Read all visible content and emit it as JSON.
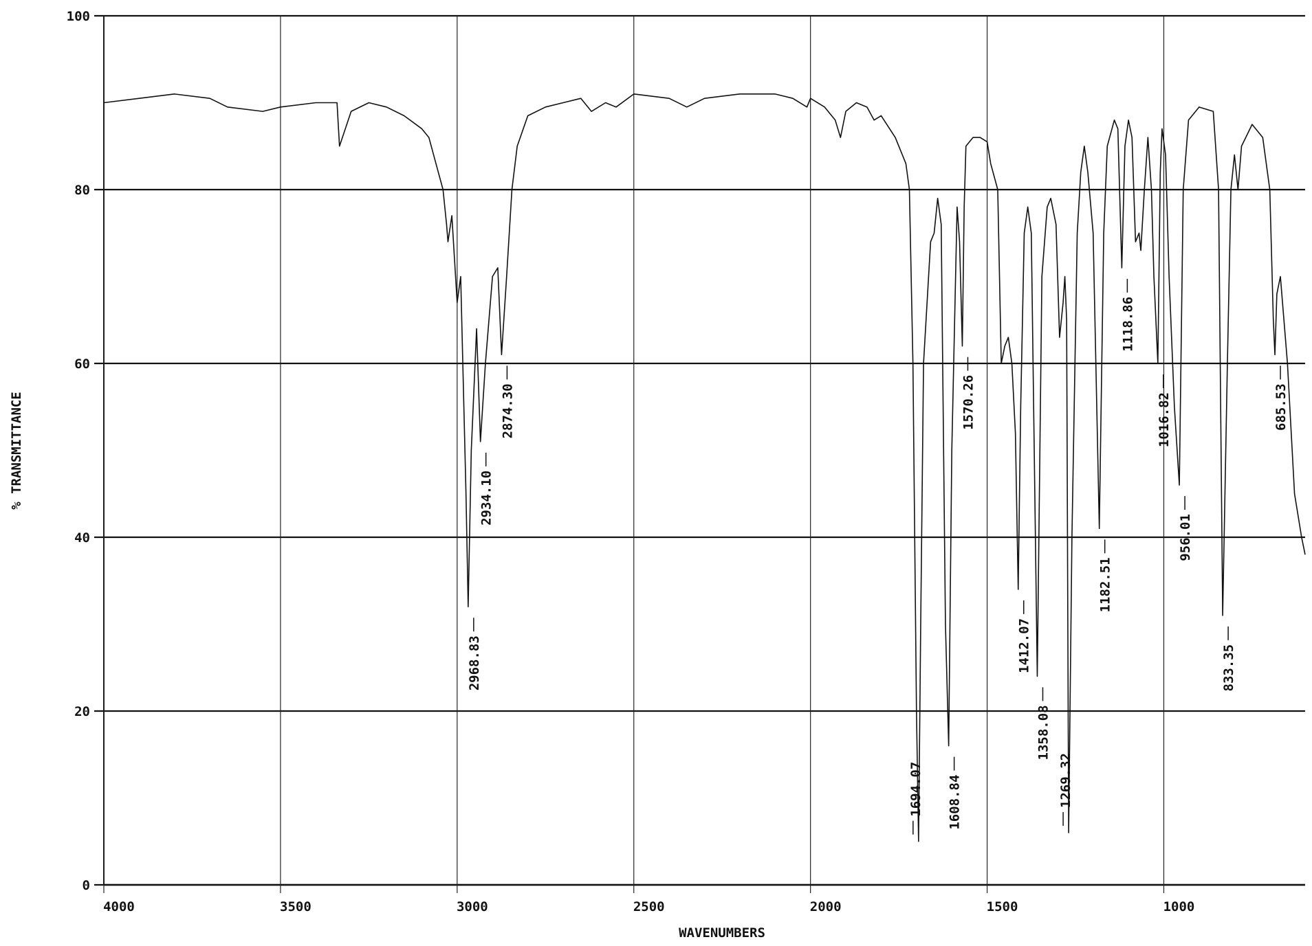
{
  "chart_data": {
    "type": "line",
    "x_label": "WAVENUMBERS",
    "y_label": "% TRANSMITTANCE",
    "color": "#111111",
    "grid": true,
    "xlim": [
      4000,
      600
    ],
    "ylim": [
      0,
      100
    ],
    "xticks": [
      4000,
      3500,
      3000,
      2500,
      2000,
      1500,
      1000
    ],
    "yticks": [
      0,
      20,
      40,
      60,
      80,
      100
    ],
    "x": [
      4000,
      3900,
      3800,
      3700,
      3650,
      3550,
      3500,
      3400,
      3340,
      3333,
      3300,
      3250,
      3200,
      3150,
      3100,
      3080,
      3060,
      3040,
      3030,
      3026,
      3015,
      3000,
      2990,
      2975,
      2968.83,
      2960,
      2945,
      2934.1,
      2920,
      2900,
      2885,
      2874.3,
      2860,
      2845,
      2830,
      2800,
      2750,
      2700,
      2650,
      2620,
      2580,
      2550,
      2500,
      2400,
      2350,
      2300,
      2200,
      2100,
      2050,
      2010,
      2000,
      1960,
      1930,
      1915,
      1900,
      1870,
      1840,
      1820,
      1800,
      1760,
      1730,
      1720,
      1710,
      1700,
      1694.07,
      1688,
      1680,
      1660,
      1650,
      1640,
      1630,
      1618,
      1608.84,
      1600,
      1585,
      1578,
      1570.26,
      1565,
      1560,
      1540,
      1520,
      1500,
      1490,
      1470,
      1460,
      1450,
      1440,
      1430,
      1420,
      1412.07,
      1405,
      1395,
      1385,
      1375,
      1358.08,
      1345,
      1330,
      1320,
      1305,
      1295,
      1285,
      1280,
      1275,
      1269.32,
      1260,
      1245,
      1235,
      1225,
      1215,
      1200,
      1182.51,
      1170,
      1160,
      1140,
      1130,
      1118.86,
      1110,
      1100,
      1090,
      1080,
      1070,
      1065,
      1055,
      1045,
      1035,
      1028,
      1016.82,
      1010,
      1005,
      995,
      985,
      970,
      956.01,
      945,
      930,
      900,
      860,
      845,
      833.35,
      820,
      810,
      800,
      790,
      780,
      750,
      720,
      700,
      690,
      685.53,
      680,
      670,
      650,
      630,
      610,
      600
    ],
    "values": [
      90,
      90.5,
      91,
      90.5,
      89.5,
      89,
      89.5,
      90,
      90,
      85,
      89,
      90,
      89.5,
      88.5,
      87,
      86,
      83,
      80,
      76,
      74,
      77,
      67,
      70,
      45,
      32,
      50,
      64,
      51,
      60,
      70,
      71,
      61,
      70,
      80,
      85,
      88.5,
      89.5,
      90,
      90.5,
      89,
      90,
      89.5,
      91,
      90.5,
      89.5,
      90.5,
      91,
      91,
      90.5,
      89.5,
      90.5,
      89.5,
      88,
      86,
      89,
      90,
      89.5,
      88,
      88.5,
      86,
      83,
      80,
      60,
      20,
      5,
      30,
      60,
      74,
      75,
      79,
      76,
      30,
      16,
      50,
      78,
      74,
      62,
      78,
      85,
      86,
      86,
      85.5,
      83,
      80,
      60,
      62,
      63,
      60,
      52,
      34,
      55,
      75,
      78,
      75,
      24,
      70,
      78,
      79,
      76,
      63,
      67,
      70,
      65,
      6,
      40,
      75,
      82,
      85,
      82,
      75,
      41,
      75,
      85,
      88,
      87,
      71,
      85,
      88,
      86,
      74,
      75,
      73,
      80,
      86,
      80,
      70,
      60,
      82,
      87,
      84,
      70,
      55,
      46,
      80,
      88,
      89.5,
      89,
      80,
      31,
      60,
      80,
      84,
      80,
      85,
      87.5,
      86,
      80,
      65,
      61,
      68,
      70,
      60,
      45,
      40,
      38
    ],
    "annotations": [
      {
        "text": "2968.83",
        "x": 2968.83
      },
      {
        "text": "2934.10",
        "x": 2934.1
      },
      {
        "text": "2874.30",
        "x": 2874.3
      },
      {
        "text": "1694.07",
        "x": 1694.07
      },
      {
        "text": "1608.84",
        "x": 1608.84
      },
      {
        "text": "1570.26",
        "x": 1570.26
      },
      {
        "text": "1412.07",
        "x": 1412.07
      },
      {
        "text": "1358.08",
        "x": 1358.08
      },
      {
        "text": "1269.32",
        "x": 1269.32
      },
      {
        "text": "1182.51",
        "x": 1182.51
      },
      {
        "text": "1118.86",
        "x": 1118.86
      },
      {
        "text": "1016.82",
        "x": 1016.82
      },
      {
        "text": "956.01",
        "x": 956.01
      },
      {
        "text": "833.35",
        "x": 833.35
      },
      {
        "text": "685.53",
        "x": 685.53
      }
    ]
  }
}
